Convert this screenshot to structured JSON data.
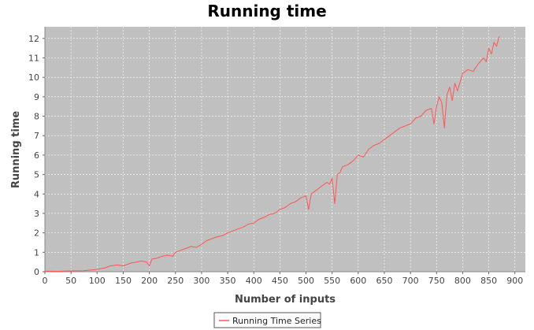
{
  "chart_data": {
    "type": "line",
    "title": "Running time",
    "xlabel": "Number of inputs",
    "ylabel": "Running time",
    "xlim": [
      0,
      920
    ],
    "ylim": [
      0,
      12.6
    ],
    "xticks": [
      0,
      50,
      100,
      150,
      200,
      250,
      300,
      350,
      400,
      450,
      500,
      550,
      600,
      650,
      700,
      750,
      800,
      850,
      900
    ],
    "yticks": [
      0,
      1,
      2,
      3,
      4,
      5,
      6,
      7,
      8,
      9,
      10,
      11,
      12
    ],
    "grid": true,
    "legend": "bottom-center",
    "colors": {
      "plot_background": "#c0c0c0",
      "grid": "#ffffff",
      "series": "#ff5555"
    },
    "series": [
      {
        "name": "Running Time Series",
        "x": [
          0,
          25,
          50,
          75,
          100,
          115,
          125,
          140,
          150,
          165,
          175,
          185,
          195,
          200,
          205,
          215,
          225,
          235,
          245,
          250,
          260,
          270,
          280,
          290,
          300,
          310,
          320,
          330,
          340,
          350,
          360,
          370,
          380,
          390,
          400,
          410,
          420,
          430,
          440,
          450,
          460,
          470,
          480,
          490,
          500,
          505,
          510,
          520,
          530,
          540,
          545,
          550,
          555,
          560,
          565,
          570,
          580,
          590,
          600,
          610,
          620,
          630,
          640,
          650,
          660,
          670,
          680,
          690,
          700,
          710,
          720,
          730,
          740,
          745,
          750,
          755,
          760,
          765,
          770,
          775,
          780,
          785,
          790,
          800,
          810,
          820,
          830,
          840,
          845,
          850,
          855,
          860,
          865,
          870
        ],
        "y": [
          0.03,
          0.02,
          0.04,
          0.05,
          0.12,
          0.2,
          0.3,
          0.35,
          0.3,
          0.45,
          0.5,
          0.55,
          0.5,
          0.3,
          0.65,
          0.7,
          0.8,
          0.85,
          0.8,
          1.0,
          1.1,
          1.2,
          1.3,
          1.25,
          1.4,
          1.6,
          1.7,
          1.8,
          1.85,
          2.0,
          2.1,
          2.2,
          2.3,
          2.45,
          2.5,
          2.7,
          2.8,
          2.95,
          3.0,
          3.2,
          3.3,
          3.5,
          3.6,
          3.8,
          3.9,
          3.2,
          4.0,
          4.2,
          4.4,
          4.6,
          4.5,
          4.8,
          3.5,
          5.0,
          5.1,
          5.4,
          5.5,
          5.7,
          6.0,
          5.9,
          6.3,
          6.5,
          6.6,
          6.8,
          7.0,
          7.2,
          7.4,
          7.5,
          7.6,
          7.9,
          8.0,
          8.3,
          8.4,
          7.6,
          8.5,
          9.0,
          8.7,
          7.4,
          9.1,
          9.5,
          8.8,
          9.7,
          9.3,
          10.2,
          10.4,
          10.3,
          10.7,
          11.0,
          10.8,
          11.5,
          11.2,
          11.8,
          11.6,
          12.1
        ]
      }
    ]
  }
}
